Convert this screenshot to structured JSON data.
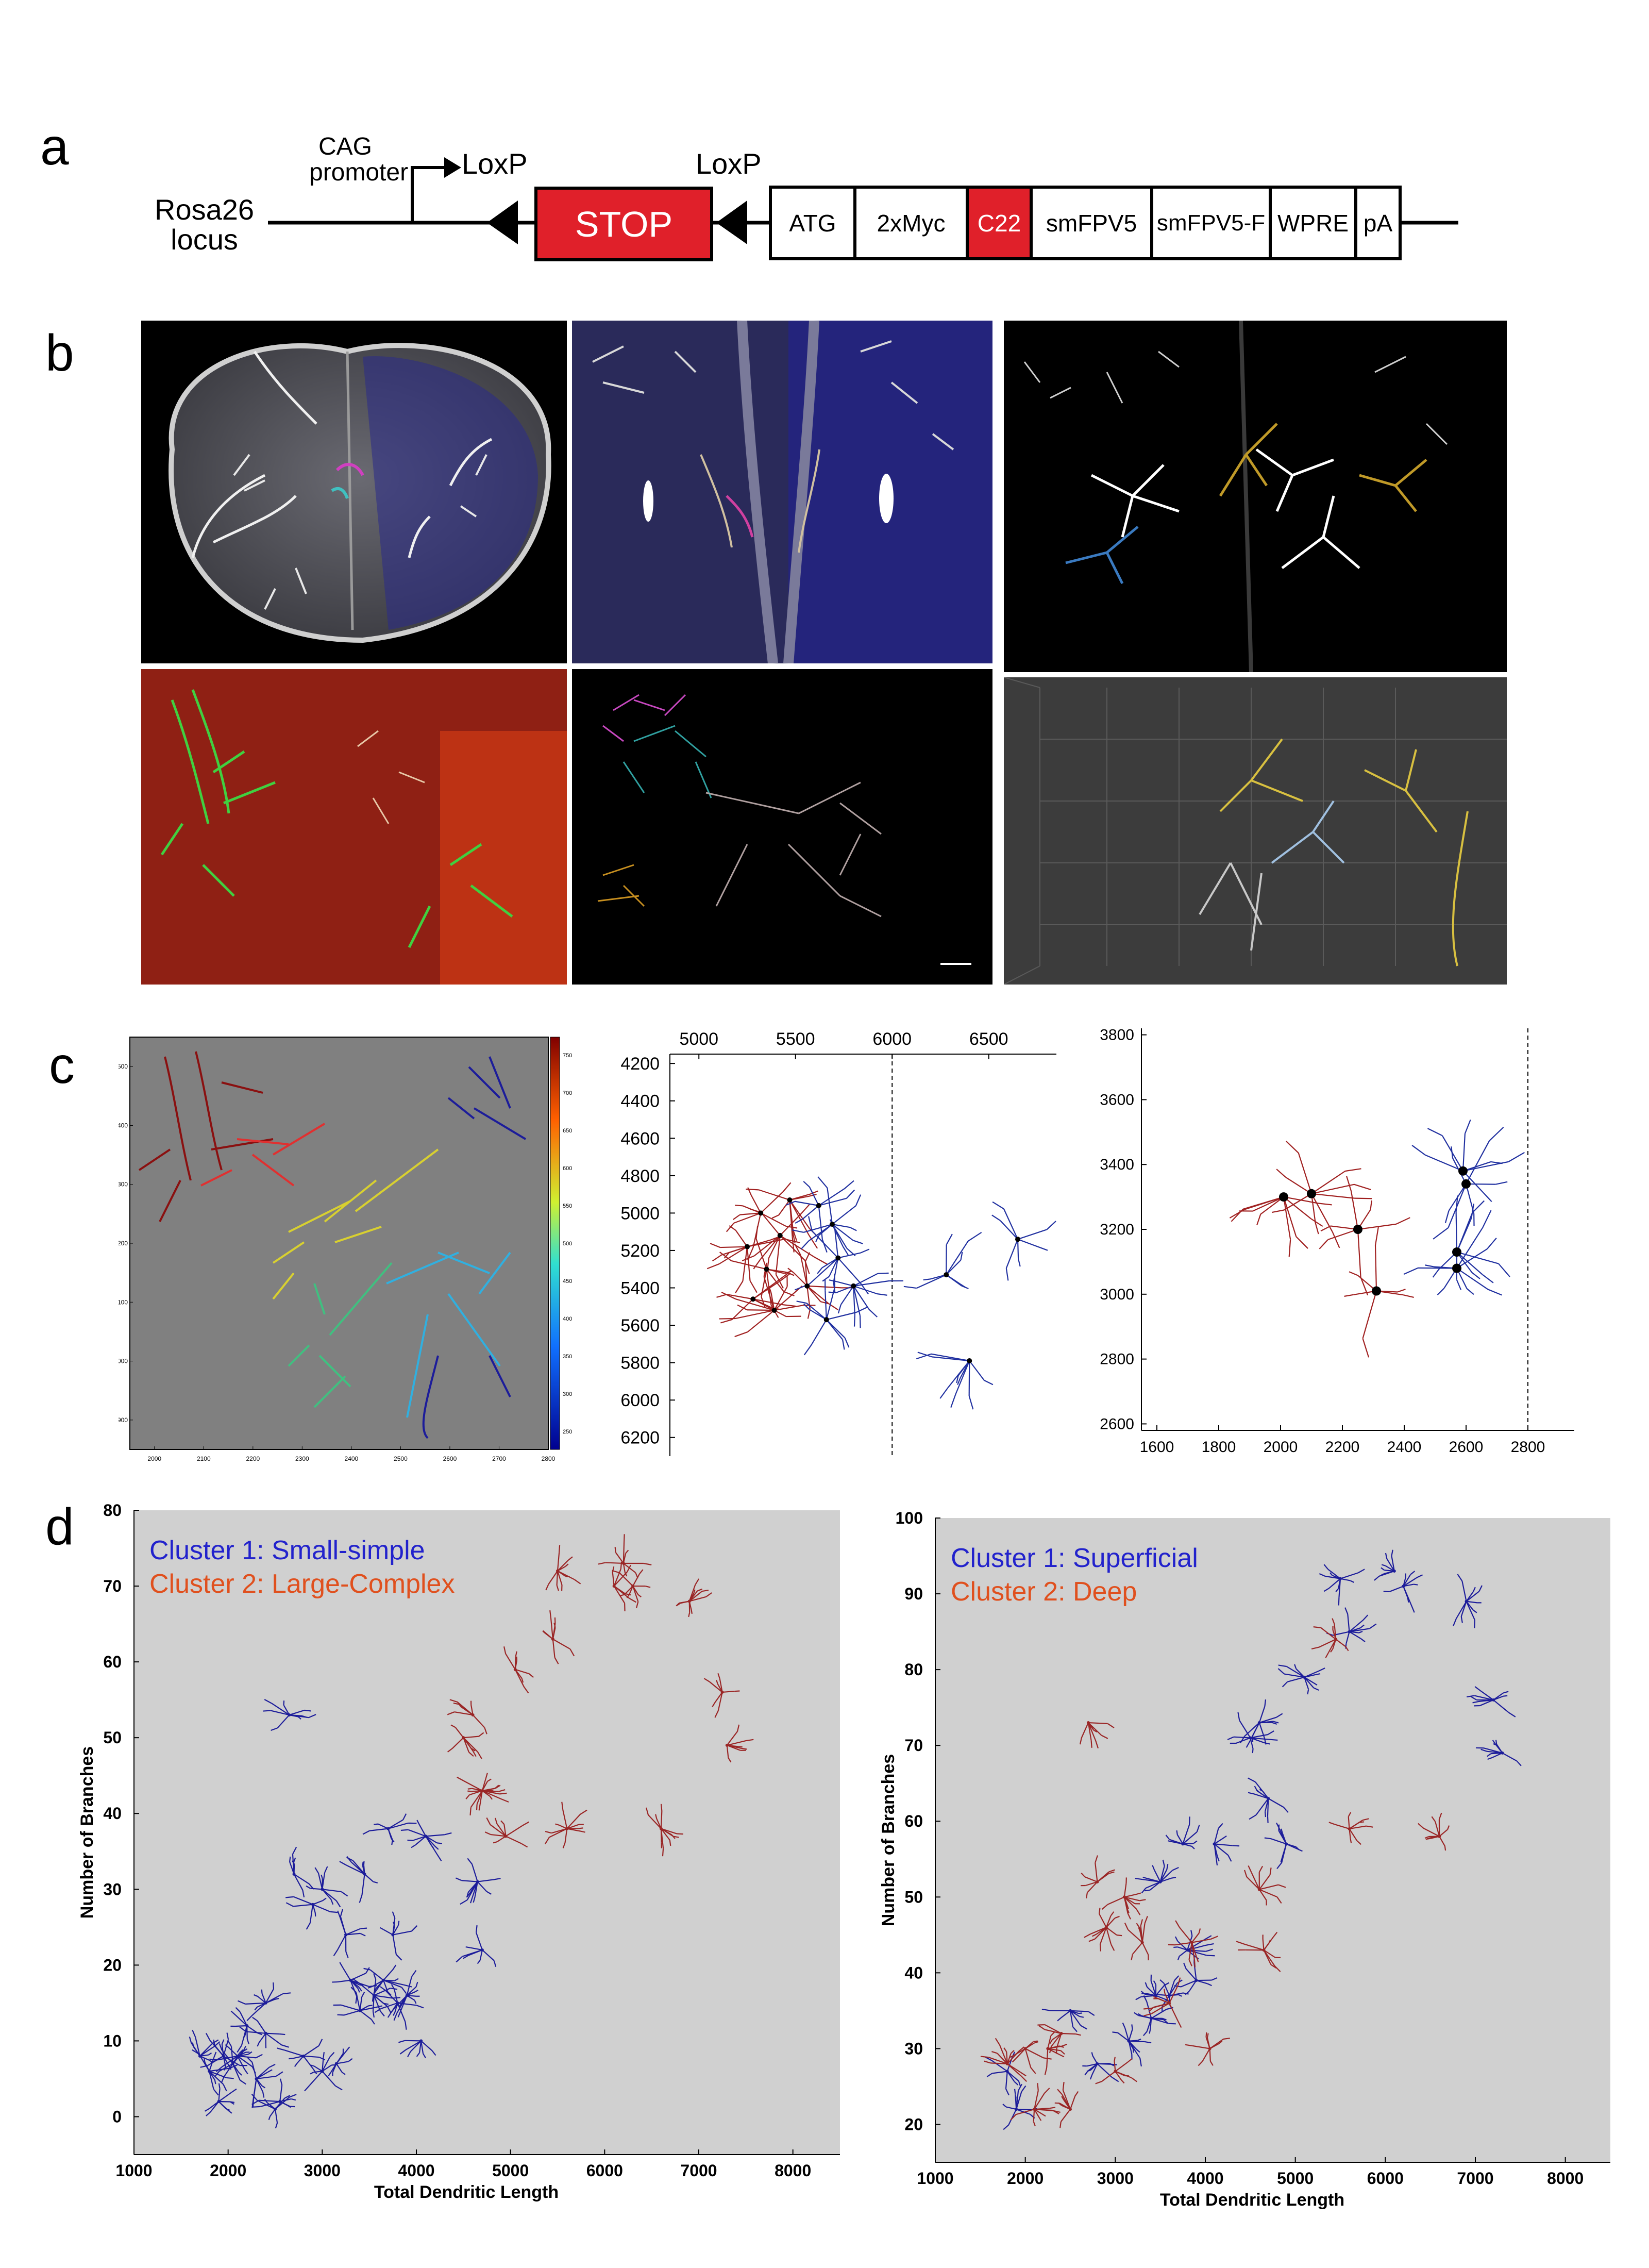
{
  "panels": {
    "a": "a",
    "b": "b",
    "c": "c",
    "d": "d"
  },
  "construct": {
    "locus": [
      "Rosa26",
      "locus"
    ],
    "promoter": [
      "CAG",
      "promoter"
    ],
    "loxp1": "LoxP",
    "loxp2": "LoxP",
    "stop": "STOP",
    "boxes": [
      "ATG",
      "2xMyc",
      "C22",
      "smFPV5",
      "smFPV5-F",
      "WPRE",
      "pA"
    ],
    "colors": {
      "stop_fill": "#e0202a",
      "c22_fill": "#e0202a"
    }
  },
  "chart_data": [
    {
      "id": "c1",
      "type": "scatter",
      "title": "",
      "xlabel": "",
      "ylabel": "",
      "xlim": [
        1950,
        2800
      ],
      "ylim": [
        2850,
        3550
      ],
      "x_ticks": [
        2000,
        2100,
        2200,
        2300,
        2400,
        2500,
        2600,
        2700,
        2800
      ],
      "y_ticks": [
        2900,
        3000,
        3100,
        3200,
        3300,
        3400,
        3500
      ],
      "colorbar_ticks": [
        750,
        700,
        650,
        600,
        550,
        500,
        450,
        400,
        350,
        300,
        250
      ],
      "background": "#808080"
    },
    {
      "id": "c2",
      "type": "scatter",
      "title": "",
      "xlabel": "",
      "ylabel": "",
      "xlim": [
        4850,
        6850
      ],
      "ylim": [
        4150,
        6300
      ],
      "x_ticks": [
        5000,
        5500,
        6000,
        6500
      ],
      "y_ticks": [
        4200,
        4400,
        4600,
        4800,
        5000,
        5200,
        5400,
        5600,
        5800,
        6000,
        6200
      ],
      "dashed_x": 6000,
      "series": [
        {
          "name": "",
          "color": "#a02020",
          "x": [
            5320,
            5470,
            5250,
            5420,
            5350,
            5560,
            5280,
            5390
          ],
          "y": [
            5000,
            4930,
            5180,
            5120,
            5300,
            5390,
            5460,
            5520
          ]
        },
        {
          "name": "",
          "color": "#2030a0",
          "x": [
            5620,
            5690,
            5720,
            5660,
            5800,
            6280,
            6650,
            6400
          ],
          "y": [
            4960,
            5060,
            5240,
            5570,
            5390,
            5330,
            5140,
            5790
          ]
        }
      ]
    },
    {
      "id": "c3",
      "type": "scatter",
      "title": "",
      "xlabel": "",
      "ylabel": "",
      "xlim": [
        1550,
        2950
      ],
      "ylim": [
        2580,
        3820
      ],
      "x_ticks": [
        1600,
        1800,
        2000,
        2200,
        2400,
        2600,
        2800
      ],
      "y_ticks": [
        2600,
        2800,
        3000,
        3200,
        3400,
        3600,
        3800
      ],
      "dashed_x": 2800,
      "soma_points": {
        "x": [
          2010,
          2100,
          2250,
          2310,
          2590,
          2600,
          2570,
          2570
        ],
        "y": [
          3300,
          3310,
          3200,
          3010,
          3380,
          3340,
          3130,
          3080
        ]
      }
    },
    {
      "id": "d1",
      "type": "scatter",
      "title": "",
      "xlabel": "Total Dendritic Length",
      "ylabel": "Number of Branches",
      "xlim": [
        1000,
        8500
      ],
      "ylim": [
        -5,
        80
      ],
      "x_ticks": [
        1000,
        2000,
        3000,
        4000,
        5000,
        6000,
        7000,
        8000
      ],
      "y_ticks": [
        0,
        10,
        20,
        30,
        40,
        50,
        60,
        70,
        80
      ],
      "legend": [
        "Cluster 1: Small-simple",
        "Cluster 2: Large-Complex"
      ],
      "legend_position": "top-left",
      "colors": [
        "#2222cc",
        "#e0501e"
      ],
      "series": [
        {
          "name": "Cluster 1: Small-simple",
          "color": "#1c1c9a",
          "x": [
            1700,
            1800,
            1900,
            1950,
            2050,
            2100,
            2200,
            2300,
            2400,
            2400,
            2500,
            2550,
            2650,
            2700,
            2800,
            2900,
            3000,
            3000,
            3150,
            3250,
            3300,
            3400,
            3450,
            3550,
            3650,
            3700,
            3750,
            3800,
            3900,
            4050,
            4100,
            4650,
            4700
          ],
          "y": [
            8,
            6,
            2,
            8,
            7,
            8,
            12,
            5,
            11,
            15,
            1,
            2,
            53,
            32,
            8,
            28,
            30,
            6,
            7,
            24,
            18,
            14,
            32,
            16,
            18,
            38,
            24,
            15,
            16,
            10,
            37,
            31,
            22
          ]
        },
        {
          "name": "Cluster 2: Large-Complex",
          "color": "#9a2525",
          "x": [
            4500,
            4600,
            4700,
            4700,
            4950,
            5050,
            5450,
            5500,
            5600,
            6100,
            6200,
            6300,
            6600,
            6900,
            7250,
            7300
          ],
          "y": [
            50,
            53,
            43,
            43,
            37,
            59,
            63,
            72,
            38,
            70,
            73,
            70,
            38,
            68,
            56,
            49
          ]
        }
      ]
    },
    {
      "id": "d2",
      "type": "scatter",
      "title": "",
      "xlabel": "Total Dendritic Length",
      "ylabel": "Number of Branches",
      "xlim": [
        1000,
        8500
      ],
      "ylim": [
        15,
        100
      ],
      "x_ticks": [
        1000,
        2000,
        3000,
        4000,
        5000,
        6000,
        7000,
        8000
      ],
      "y_ticks": [
        20,
        30,
        40,
        50,
        60,
        70,
        80,
        90,
        100
      ],
      "legend": [
        "Cluster 1: Superficial",
        "Cluster 2: Deep"
      ],
      "legend_position": "top-left",
      "colors": [
        "#2222cc",
        "#e0501e"
      ],
      "series": [
        {
          "name": "Cluster 1: Superficial",
          "color": "#1c1c9a",
          "x": [
            1800,
            1900,
            2500,
            2800,
            3150,
            3400,
            3450,
            3500,
            3600,
            3750,
            3800,
            3900,
            4100,
            4500,
            4600,
            4700,
            4900,
            5100,
            5500,
            5600,
            6100,
            6200,
            6900,
            7200,
            7300
          ],
          "y": [
            27,
            22,
            35,
            28,
            31,
            34,
            37,
            52,
            37,
            57,
            43,
            39,
            57,
            71,
            73,
            63,
            57,
            79,
            92,
            85,
            93,
            91,
            89,
            76,
            69
          ]
        },
        {
          "name": "Cluster 2: Deep",
          "color": "#9a2525",
          "x": [
            1800,
            2000,
            2100,
            2250,
            2400,
            2500,
            2700,
            2800,
            2900,
            3000,
            3100,
            3300,
            3600,
            3850,
            4050,
            4600,
            4650,
            5450,
            5600,
            6600
          ],
          "y": [
            28,
            30,
            22,
            30,
            32,
            22,
            73,
            52,
            46,
            27,
            50,
            44,
            36,
            44,
            30,
            51,
            43,
            84,
            59,
            58
          ]
        }
      ]
    }
  ],
  "colors": {
    "plot_bg_d": "#d0d0d0",
    "plot_bg_c1": "#808080"
  }
}
